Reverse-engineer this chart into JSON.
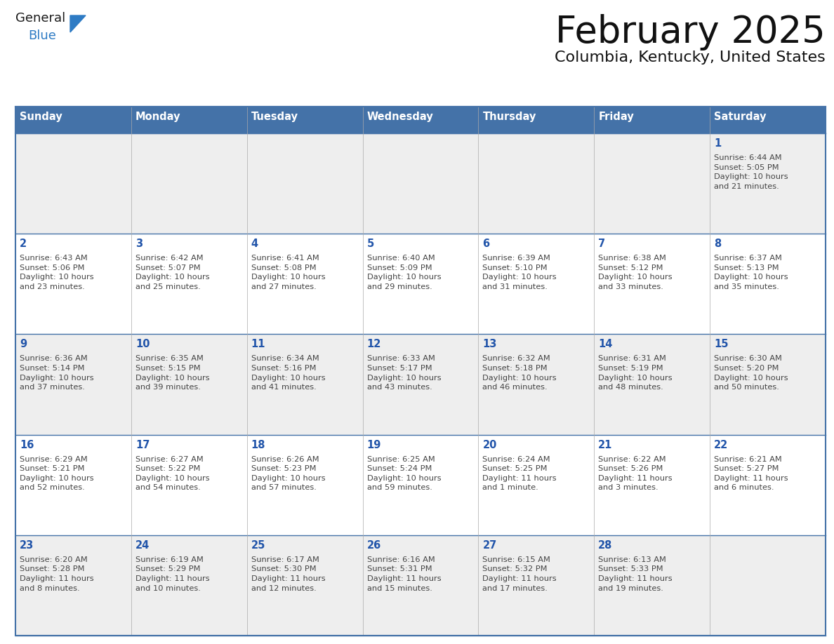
{
  "title": "February 2025",
  "subtitle": "Columbia, Kentucky, United States",
  "header_bg": "#4472a8",
  "header_text_color": "#ffffff",
  "day_names": [
    "Sunday",
    "Monday",
    "Tuesday",
    "Wednesday",
    "Thursday",
    "Friday",
    "Saturday"
  ],
  "row_bg_light": "#f2f2f2",
  "row_bg_white": "#ffffff",
  "cell_text_color": "#444444",
  "day_num_color": "#2255aa",
  "grid_line_color": "#4472a8",
  "calendar": [
    [
      {
        "day": null,
        "info": null
      },
      {
        "day": null,
        "info": null
      },
      {
        "day": null,
        "info": null
      },
      {
        "day": null,
        "info": null
      },
      {
        "day": null,
        "info": null
      },
      {
        "day": null,
        "info": null
      },
      {
        "day": 1,
        "info": "Sunrise: 6:44 AM\nSunset: 5:05 PM\nDaylight: 10 hours\nand 21 minutes."
      }
    ],
    [
      {
        "day": 2,
        "info": "Sunrise: 6:43 AM\nSunset: 5:06 PM\nDaylight: 10 hours\nand 23 minutes."
      },
      {
        "day": 3,
        "info": "Sunrise: 6:42 AM\nSunset: 5:07 PM\nDaylight: 10 hours\nand 25 minutes."
      },
      {
        "day": 4,
        "info": "Sunrise: 6:41 AM\nSunset: 5:08 PM\nDaylight: 10 hours\nand 27 minutes."
      },
      {
        "day": 5,
        "info": "Sunrise: 6:40 AM\nSunset: 5:09 PM\nDaylight: 10 hours\nand 29 minutes."
      },
      {
        "day": 6,
        "info": "Sunrise: 6:39 AM\nSunset: 5:10 PM\nDaylight: 10 hours\nand 31 minutes."
      },
      {
        "day": 7,
        "info": "Sunrise: 6:38 AM\nSunset: 5:12 PM\nDaylight: 10 hours\nand 33 minutes."
      },
      {
        "day": 8,
        "info": "Sunrise: 6:37 AM\nSunset: 5:13 PM\nDaylight: 10 hours\nand 35 minutes."
      }
    ],
    [
      {
        "day": 9,
        "info": "Sunrise: 6:36 AM\nSunset: 5:14 PM\nDaylight: 10 hours\nand 37 minutes."
      },
      {
        "day": 10,
        "info": "Sunrise: 6:35 AM\nSunset: 5:15 PM\nDaylight: 10 hours\nand 39 minutes."
      },
      {
        "day": 11,
        "info": "Sunrise: 6:34 AM\nSunset: 5:16 PM\nDaylight: 10 hours\nand 41 minutes."
      },
      {
        "day": 12,
        "info": "Sunrise: 6:33 AM\nSunset: 5:17 PM\nDaylight: 10 hours\nand 43 minutes."
      },
      {
        "day": 13,
        "info": "Sunrise: 6:32 AM\nSunset: 5:18 PM\nDaylight: 10 hours\nand 46 minutes."
      },
      {
        "day": 14,
        "info": "Sunrise: 6:31 AM\nSunset: 5:19 PM\nDaylight: 10 hours\nand 48 minutes."
      },
      {
        "day": 15,
        "info": "Sunrise: 6:30 AM\nSunset: 5:20 PM\nDaylight: 10 hours\nand 50 minutes."
      }
    ],
    [
      {
        "day": 16,
        "info": "Sunrise: 6:29 AM\nSunset: 5:21 PM\nDaylight: 10 hours\nand 52 minutes."
      },
      {
        "day": 17,
        "info": "Sunrise: 6:27 AM\nSunset: 5:22 PM\nDaylight: 10 hours\nand 54 minutes."
      },
      {
        "day": 18,
        "info": "Sunrise: 6:26 AM\nSunset: 5:23 PM\nDaylight: 10 hours\nand 57 minutes."
      },
      {
        "day": 19,
        "info": "Sunrise: 6:25 AM\nSunset: 5:24 PM\nDaylight: 10 hours\nand 59 minutes."
      },
      {
        "day": 20,
        "info": "Sunrise: 6:24 AM\nSunset: 5:25 PM\nDaylight: 11 hours\nand 1 minute."
      },
      {
        "day": 21,
        "info": "Sunrise: 6:22 AM\nSunset: 5:26 PM\nDaylight: 11 hours\nand 3 minutes."
      },
      {
        "day": 22,
        "info": "Sunrise: 6:21 AM\nSunset: 5:27 PM\nDaylight: 11 hours\nand 6 minutes."
      }
    ],
    [
      {
        "day": 23,
        "info": "Sunrise: 6:20 AM\nSunset: 5:28 PM\nDaylight: 11 hours\nand 8 minutes."
      },
      {
        "day": 24,
        "info": "Sunrise: 6:19 AM\nSunset: 5:29 PM\nDaylight: 11 hours\nand 10 minutes."
      },
      {
        "day": 25,
        "info": "Sunrise: 6:17 AM\nSunset: 5:30 PM\nDaylight: 11 hours\nand 12 minutes."
      },
      {
        "day": 26,
        "info": "Sunrise: 6:16 AM\nSunset: 5:31 PM\nDaylight: 11 hours\nand 15 minutes."
      },
      {
        "day": 27,
        "info": "Sunrise: 6:15 AM\nSunset: 5:32 PM\nDaylight: 11 hours\nand 17 minutes."
      },
      {
        "day": 28,
        "info": "Sunrise: 6:13 AM\nSunset: 5:33 PM\nDaylight: 11 hours\nand 19 minutes."
      },
      {
        "day": null,
        "info": null
      }
    ]
  ],
  "logo_general_color": "#1a1a1a",
  "logo_blue_color": "#2e7bc4",
  "row_bg_colors": [
    "#eeeeee",
    "#ffffff",
    "#eeeeee",
    "#ffffff",
    "#eeeeee"
  ]
}
